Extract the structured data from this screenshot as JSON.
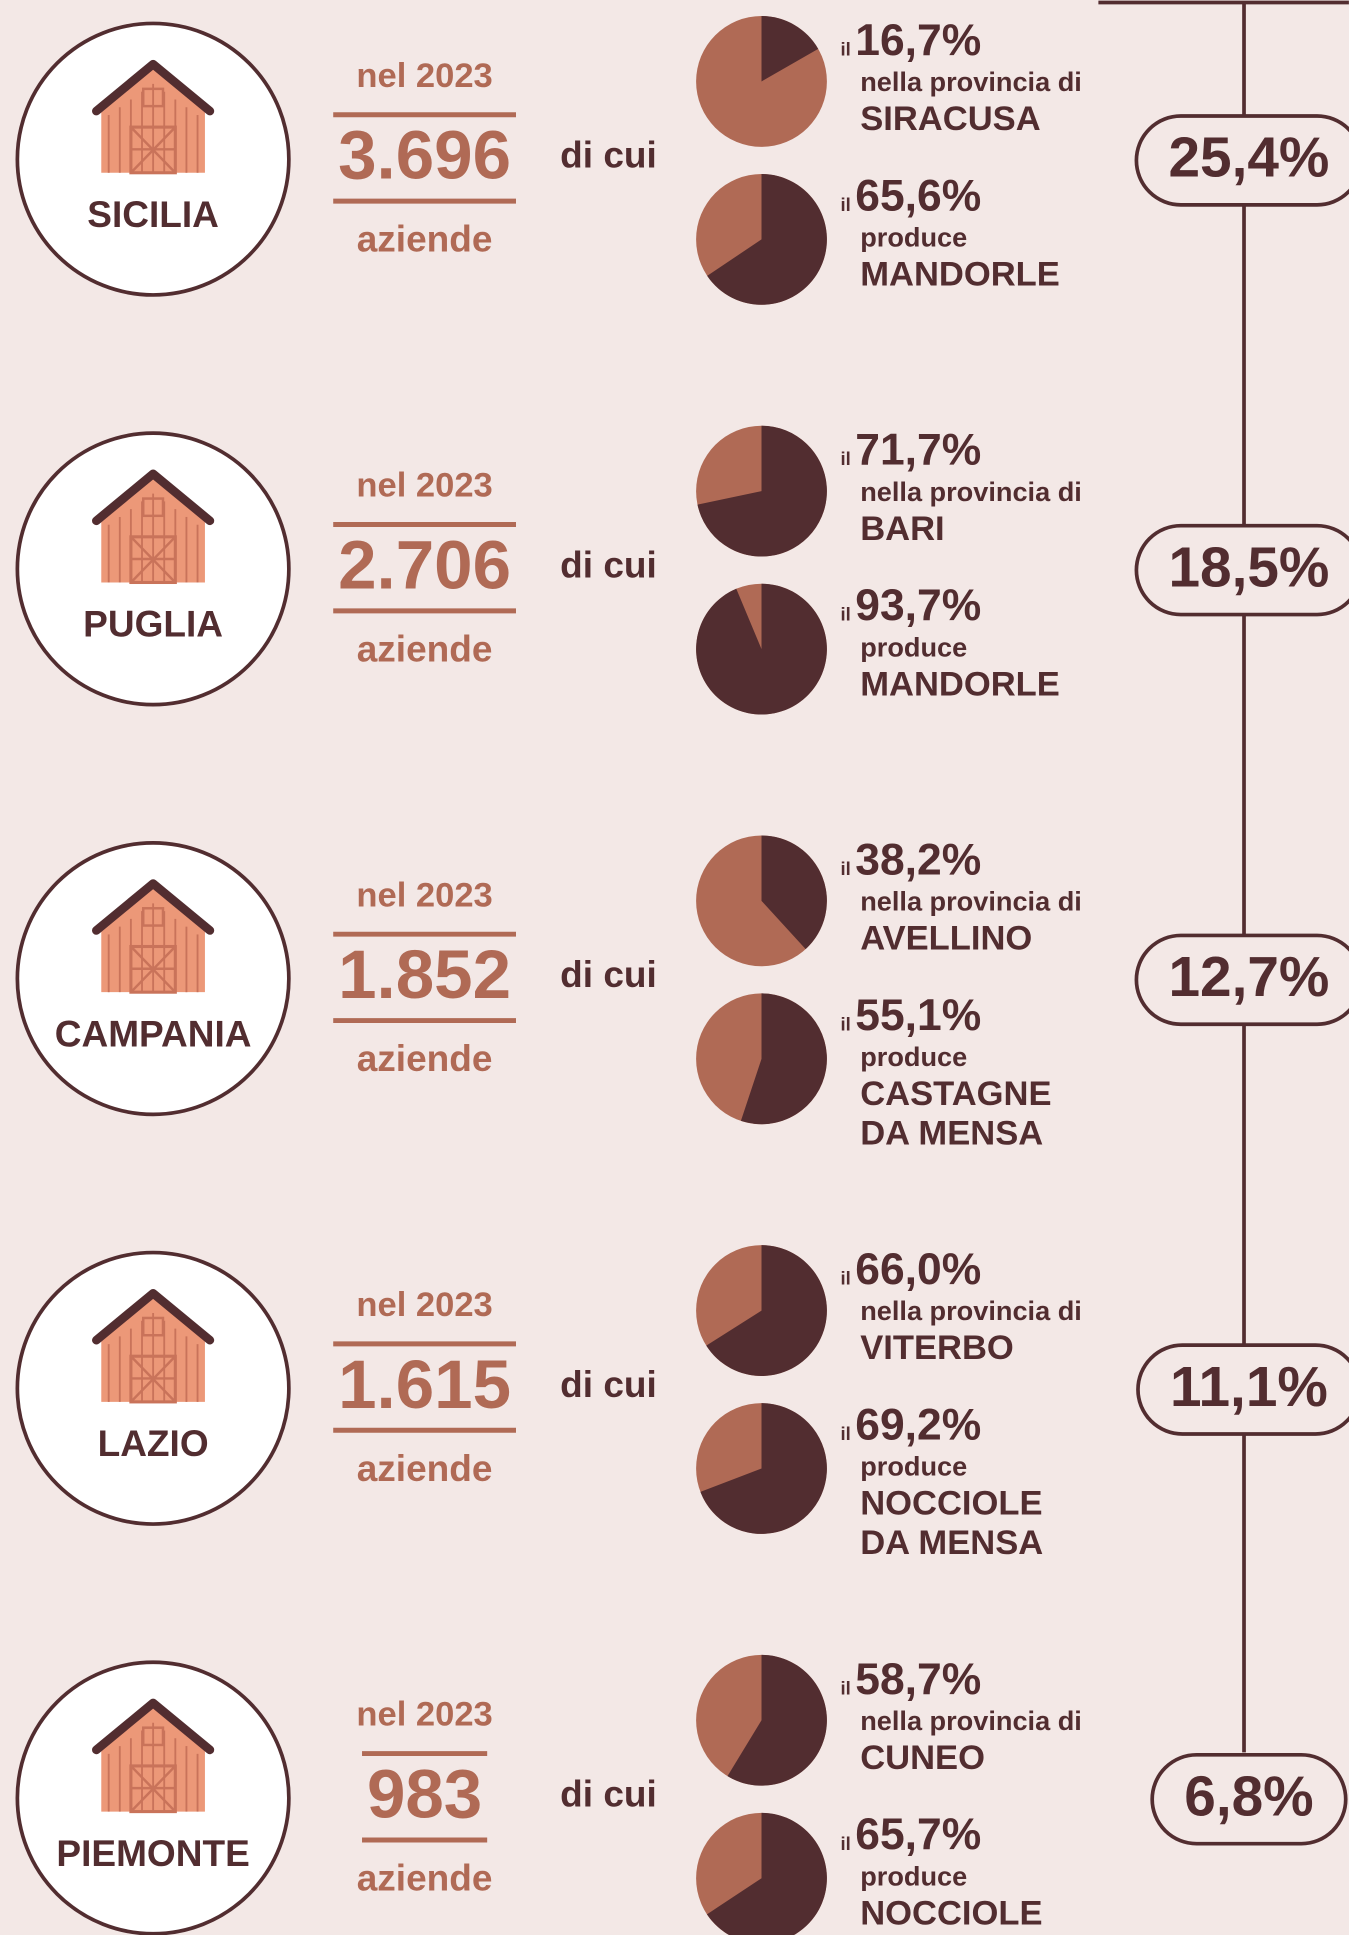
{
  "regions": [
    {
      "name": "SICILIA",
      "year_label": "nel 2023",
      "count": "3.696",
      "unit": "aziende",
      "di_cui": "di cui",
      "pies": [
        {
          "prefix": "il",
          "value": 16.7,
          "value_label": "16,7%",
          "lines": [
            "nella provincia di",
            "SIRACUSA"
          ]
        },
        {
          "prefix": "il",
          "value": 65.6,
          "value_label": "65,6%",
          "lines": [
            "produce",
            "MANDORLE"
          ]
        }
      ],
      "share": 25.4,
      "share_label": "25,4%"
    },
    {
      "name": "PUGLIA",
      "year_label": "nel 2023",
      "count": "2.706",
      "unit": "aziende",
      "di_cui": "di cui",
      "pies": [
        {
          "prefix": "il",
          "value": 71.7,
          "value_label": "71,7%",
          "lines": [
            "nella provincia di",
            "BARI"
          ]
        },
        {
          "prefix": "il",
          "value": 93.7,
          "value_label": "93,7%",
          "lines": [
            "produce",
            "MANDORLE"
          ]
        }
      ],
      "share": 18.5,
      "share_label": "18,5%"
    },
    {
      "name": "CAMPANIA",
      "year_label": "nel 2023",
      "count": "1.852",
      "unit": "aziende",
      "di_cui": "di cui",
      "pies": [
        {
          "prefix": "il",
          "value": 38.2,
          "value_label": "38,2%",
          "lines": [
            "nella provincia di",
            "AVELLINO"
          ]
        },
        {
          "prefix": "il",
          "value": 55.1,
          "value_label": "55,1%",
          "lines": [
            "produce",
            "CASTAGNE",
            "DA MENSA"
          ]
        }
      ],
      "share": 12.7,
      "share_label": "12,7%"
    },
    {
      "name": "LAZIO",
      "year_label": "nel 2023",
      "count": "1.615",
      "unit": "aziende",
      "di_cui": "di cui",
      "pies": [
        {
          "prefix": "il",
          "value": 66.0,
          "value_label": "66,0%",
          "lines": [
            "nella provincia di",
            "VITERBO"
          ]
        },
        {
          "prefix": "il",
          "value": 69.2,
          "value_label": "69,2%",
          "lines": [
            "produce",
            "NOCCIOLE",
            "DA MENSA"
          ]
        }
      ],
      "share": 11.1,
      "share_label": "11,1%"
    },
    {
      "name": "PIEMONTE",
      "year_label": "nel 2023",
      "count": "983",
      "unit": "aziende",
      "di_cui": "di cui",
      "pies": [
        {
          "prefix": "il",
          "value": 58.7,
          "value_label": "58,7%",
          "lines": [
            "nella provincia di",
            "CUNEO"
          ]
        },
        {
          "prefix": "il",
          "value": 65.7,
          "value_label": "65,7%",
          "lines": [
            "produce",
            "NOCCIOLE"
          ]
        }
      ],
      "share": 6.8,
      "share_label": "6,8%"
    }
  ]
}
